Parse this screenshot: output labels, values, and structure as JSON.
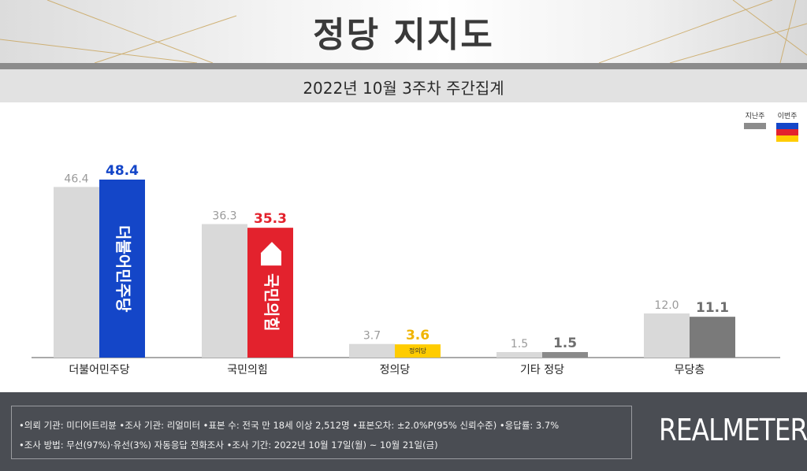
{
  "header": {
    "title": "정당 지지도",
    "subtitle": "2022년 10월 3주차 주간집계"
  },
  "legend": {
    "previous_label": "지난주",
    "current_label": "이번주",
    "previous_color": "#8c8c8c",
    "current_colors": [
      "#1446c8",
      "#e3222d",
      "#ffcc00"
    ]
  },
  "chart_data": {
    "type": "bar",
    "categories": [
      "더불어민주당",
      "국민의힘",
      "정의당",
      "기타 정당",
      "무당층"
    ],
    "series": [
      {
        "name": "지난주",
        "values": [
          46.4,
          36.3,
          3.7,
          1.5,
          12.0
        ]
      },
      {
        "name": "이번주",
        "values": [
          48.4,
          35.3,
          3.6,
          1.5,
          11.1
        ]
      }
    ],
    "previous_labels": [
      "46.4",
      "36.3",
      "3.7",
      "1.5",
      "12.0"
    ],
    "current_labels": [
      "48.4",
      "35.3",
      "3.6",
      "1.5",
      "11.1"
    ],
    "current_bar_colors": [
      "#1446c8",
      "#e3222d",
      "#ffcc00",
      "#8a8a8a",
      "#7a7a7a"
    ],
    "current_label_colors": [
      "#1446c8",
      "#e3222d",
      "#f0b400",
      "#6e6e6e",
      "#6e6e6e"
    ],
    "bar_marks": [
      "더불어민주당",
      "국민의힘",
      "정의당",
      "",
      ""
    ],
    "ylim": [
      0,
      55
    ],
    "title": "",
    "xlabel": "",
    "ylabel": ""
  },
  "footer": {
    "line1": "•의뢰 기관: 미디어트리뷴  •조사 기관: 리얼미터 •표본 수: 전국 만 18세 이상 2,512명 •표본오차: ±2.0%P(95% 신뢰수준) •응답률: 3.7%",
    "line2": "•조사 방법: 무선(97%)·유선(3%) 자동응답 전화조사 •조사 기간: 2022년 10월 17일(월) ~ 10월 21일(금)",
    "brand": "REALMETER"
  }
}
